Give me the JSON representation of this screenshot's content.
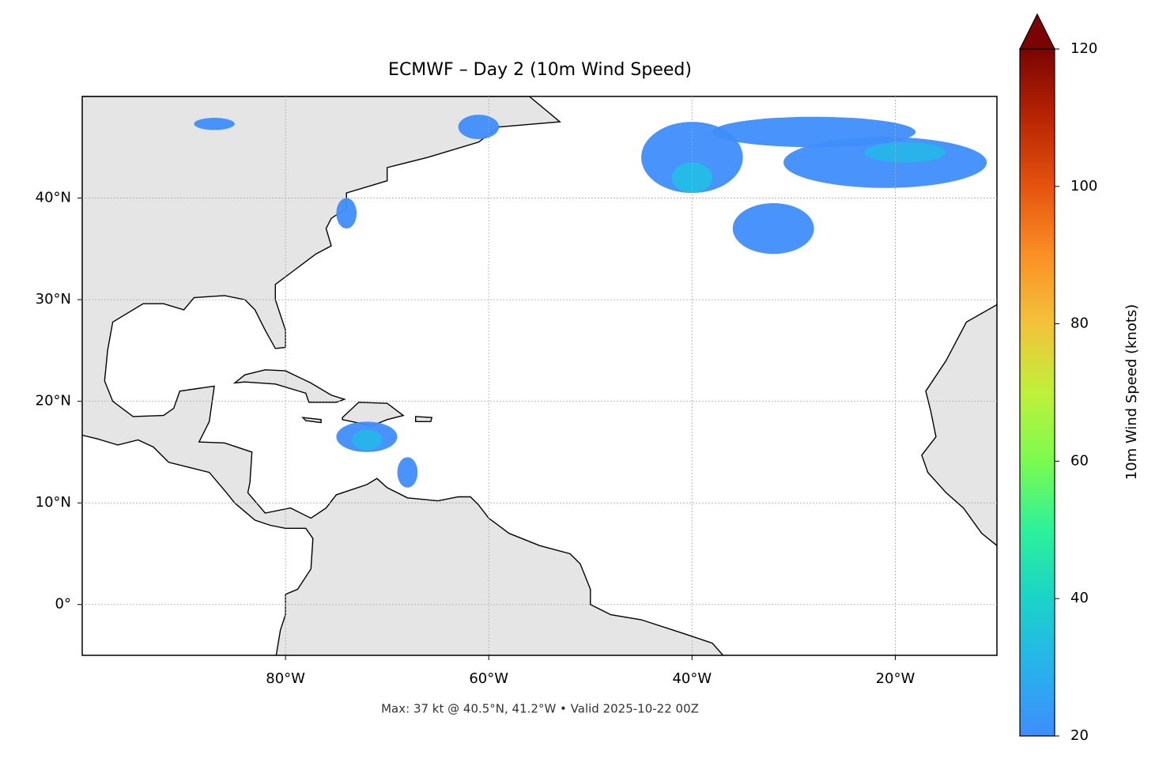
{
  "chart_data": {
    "type": "map",
    "title": "ECMWF – Day 2 (10m Wind Speed)",
    "annotation": "Max: 37 kt @ 40.5°N, 41.2°W • Valid 2025-10-22 00Z",
    "xlim": [
      -100,
      -10
    ],
    "ylim": [
      -5,
      50
    ],
    "xticks": [
      {
        "value": -80,
        "label": "80°W"
      },
      {
        "value": -60,
        "label": "60°W"
      },
      {
        "value": -40,
        "label": "40°W"
      },
      {
        "value": -20,
        "label": "20°W"
      }
    ],
    "yticks": [
      {
        "value": 0,
        "label": "0°"
      },
      {
        "value": 10,
        "label": "10°N"
      },
      {
        "value": 20,
        "label": "20°N"
      },
      {
        "value": 30,
        "label": "30°N"
      },
      {
        "value": 40,
        "label": "40°N"
      }
    ],
    "grid": true,
    "colorbar": {
      "label": "10m Wind Speed (knots)",
      "lim": [
        20,
        120
      ],
      "ticks": [
        20,
        40,
        60,
        80,
        100,
        120
      ]
    }
  }
}
